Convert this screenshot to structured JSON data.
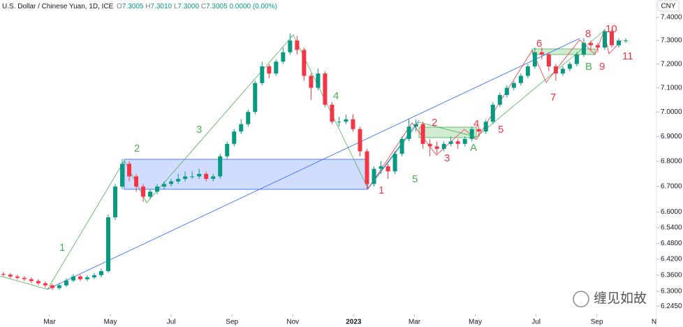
{
  "header": {
    "symbol": "U.S. Dollar / Chinese Yuan, 1D, ICE",
    "ohlc": [
      {
        "label": "O",
        "value": "7.3005"
      },
      {
        "label": "H",
        "value": "7.3010"
      },
      {
        "label": "L",
        "value": "7.3000"
      },
      {
        "label": "C",
        "value": "7.3005"
      }
    ],
    "change": "0.0000 (0.00%)",
    "currency": "CNY"
  },
  "annotations": {
    "green": [
      "1",
      "2",
      "3",
      "4",
      "5",
      "A",
      "B"
    ],
    "red": [
      "1",
      "2",
      "3",
      "4",
      "5",
      "6",
      "7",
      "8",
      "9",
      "10",
      "11"
    ]
  },
  "watermark": "缠见如故",
  "chart_data": {
    "type": "candlestick",
    "log": true,
    "grid": false,
    "up_color": "#089981",
    "down_color": "#f23645",
    "xlim": [
      0.37,
      21.96
    ],
    "ylim": [
      6.215,
      7.476
    ],
    "xticks": [
      {
        "value": 2,
        "label": "Mar"
      },
      {
        "value": 4,
        "label": "May"
      },
      {
        "value": 6,
        "label": "Jul"
      },
      {
        "value": 8,
        "label": "Sep"
      },
      {
        "value": 10,
        "label": "Nov"
      },
      {
        "value": 12,
        "label": "2023"
      },
      {
        "value": 14,
        "label": "Mar"
      },
      {
        "value": 16,
        "label": "May"
      },
      {
        "value": 18,
        "label": "Jul"
      },
      {
        "value": 20,
        "label": "Sep"
      },
      {
        "value": 22,
        "label": "Nov"
      }
    ],
    "yticks": [
      {
        "value": 7.4,
        "label": "7.4000"
      },
      {
        "value": 7.3,
        "label": "7.3000"
      },
      {
        "value": 7.2,
        "label": "7.2000"
      },
      {
        "value": 7.1,
        "label": "7.1000"
      },
      {
        "value": 7.0,
        "label": "7.0000"
      },
      {
        "value": 6.9,
        "label": "6.9000"
      },
      {
        "value": 6.8,
        "label": "6.8000"
      },
      {
        "value": 6.7,
        "label": "6.7000"
      },
      {
        "value": 6.6,
        "label": "6.6000"
      },
      {
        "value": 6.54,
        "label": "6.5400"
      },
      {
        "value": 6.48,
        "label": "6.4800"
      },
      {
        "value": 6.42,
        "label": "6.4200"
      },
      {
        "value": 6.36,
        "label": "6.3600"
      },
      {
        "value": 6.3,
        "label": "6.3000"
      },
      {
        "value": 6.245,
        "label": "6.2450"
      }
    ],
    "x": [
      0.48,
      0.71,
      0.94,
      1.17,
      1.4,
      1.63,
      1.86,
      2.09,
      2.32,
      2.55,
      2.78,
      3.01,
      3.24,
      3.47,
      3.7,
      3.93,
      4.16,
      4.39,
      4.62,
      4.85,
      5.08,
      5.31,
      5.54,
      5.77,
      6.0,
      6.23,
      6.46,
      6.69,
      6.92,
      7.15,
      7.38,
      7.61,
      7.84,
      8.07,
      8.3,
      8.53,
      8.76,
      8.99,
      9.22,
      9.45,
      9.68,
      9.91,
      10.14,
      10.37,
      10.6,
      10.83,
      11.06,
      11.29,
      11.52,
      11.75,
      11.98,
      12.21,
      12.44,
      12.67,
      12.9,
      13.13,
      13.36,
      13.59,
      13.82,
      14.05,
      14.28,
      14.51,
      14.74,
      14.97,
      15.2,
      15.43,
      15.66,
      15.89,
      16.12,
      16.35,
      16.58,
      16.81,
      17.04,
      17.27,
      17.5,
      17.73,
      17.96,
      18.19,
      18.42,
      18.65,
      18.88,
      19.11,
      19.34,
      19.57,
      19.8,
      20.03,
      20.26,
      20.49,
      20.72,
      20.95
    ],
    "open": [
      6.365,
      6.362,
      6.355,
      6.35,
      6.345,
      6.338,
      6.33,
      6.322,
      6.312,
      6.322,
      6.34,
      6.355,
      6.345,
      6.352,
      6.36,
      6.375,
      6.58,
      6.7,
      6.79,
      6.74,
      6.7,
      6.66,
      6.68,
      6.7,
      6.71,
      6.72,
      6.73,
      6.74,
      6.74,
      6.75,
      6.73,
      6.74,
      6.82,
      6.87,
      6.92,
      6.95,
      7.0,
      7.12,
      7.19,
      7.16,
      7.21,
      7.25,
      7.3,
      7.26,
      7.15,
      7.1,
      7.16,
      7.03,
      6.96,
      6.96,
      6.97,
      6.93,
      6.84,
      6.71,
      6.77,
      6.78,
      6.76,
      6.83,
      6.89,
      6.94,
      6.95,
      6.87,
      6.86,
      6.85,
      6.87,
      6.88,
      6.87,
      6.89,
      6.93,
      6.92,
      6.96,
      7.03,
      7.07,
      7.1,
      7.12,
      7.15,
      7.19,
      7.25,
      7.24,
      7.19,
      7.16,
      7.18,
      7.2,
      7.24,
      7.29,
      7.28,
      7.27,
      7.34,
      7.28,
      7.3
    ],
    "high": [
      6.372,
      6.368,
      6.362,
      6.357,
      6.352,
      6.345,
      6.337,
      6.328,
      6.33,
      6.348,
      6.364,
      6.362,
      6.36,
      6.368,
      6.384,
      6.59,
      6.71,
      6.81,
      6.8,
      6.75,
      6.71,
      6.69,
      6.71,
      6.72,
      6.73,
      6.75,
      6.76,
      6.76,
      6.77,
      6.76,
      6.75,
      6.83,
      6.88,
      6.93,
      6.97,
      7.01,
      7.13,
      7.21,
      7.2,
      7.22,
      7.27,
      7.33,
      7.32,
      7.27,
      7.16,
      7.18,
      7.17,
      7.04,
      6.98,
      6.99,
      6.99,
      6.94,
      6.85,
      6.78,
      6.8,
      6.79,
      6.84,
      6.9,
      6.97,
      6.97,
      6.96,
      6.89,
      6.88,
      6.88,
      6.9,
      6.89,
      6.9,
      6.94,
      6.94,
      6.97,
      7.04,
      7.08,
      7.11,
      7.13,
      7.16,
      7.2,
      7.27,
      7.27,
      7.25,
      7.2,
      7.19,
      7.21,
      7.25,
      7.31,
      7.3,
      7.29,
      7.35,
      7.35,
      7.31,
      7.31
    ],
    "low": [
      6.354,
      6.348,
      6.343,
      6.338,
      6.33,
      6.322,
      6.314,
      6.305,
      6.306,
      6.316,
      6.334,
      6.338,
      6.338,
      6.345,
      6.352,
      6.37,
      6.57,
      6.69,
      6.72,
      6.68,
      6.64,
      6.65,
      6.67,
      6.69,
      6.7,
      6.71,
      6.72,
      6.73,
      6.73,
      6.72,
      6.72,
      6.73,
      6.81,
      6.86,
      6.91,
      6.94,
      6.99,
      7.11,
      7.14,
      7.15,
      7.2,
      7.24,
      7.24,
      7.13,
      7.05,
      7.09,
      7.02,
      6.95,
      6.94,
      6.95,
      6.92,
      6.82,
      6.69,
      6.7,
      6.75,
      6.73,
      6.75,
      6.82,
      6.88,
      6.92,
      6.85,
      6.82,
      6.83,
      6.84,
      6.86,
      6.85,
      6.86,
      6.88,
      6.9,
      6.91,
      6.95,
      7.02,
      7.06,
      7.09,
      7.11,
      7.14,
      7.18,
      7.22,
      7.17,
      7.13,
      7.15,
      7.17,
      7.19,
      7.23,
      7.26,
      7.25,
      7.26,
      7.27,
      7.27,
      7.29
    ],
    "close": [
      6.362,
      6.355,
      6.35,
      6.345,
      6.338,
      6.33,
      6.322,
      6.312,
      6.322,
      6.34,
      6.355,
      6.345,
      6.352,
      6.36,
      6.375,
      6.58,
      6.7,
      6.79,
      6.74,
      6.7,
      6.66,
      6.68,
      6.7,
      6.71,
      6.72,
      6.73,
      6.74,
      6.74,
      6.75,
      6.73,
      6.74,
      6.82,
      6.87,
      6.92,
      6.95,
      7.0,
      7.12,
      7.19,
      7.16,
      7.21,
      7.25,
      7.3,
      7.26,
      7.15,
      7.1,
      7.16,
      7.03,
      6.96,
      6.96,
      6.97,
      6.93,
      6.84,
      6.71,
      6.77,
      6.78,
      6.76,
      6.83,
      6.89,
      6.94,
      6.95,
      6.87,
      6.86,
      6.85,
      6.87,
      6.88,
      6.87,
      6.89,
      6.93,
      6.92,
      6.96,
      7.03,
      7.07,
      7.1,
      7.12,
      7.15,
      7.19,
      7.25,
      7.24,
      7.19,
      7.16,
      7.18,
      7.2,
      7.24,
      7.29,
      7.28,
      7.27,
      7.34,
      7.28,
      7.3,
      7.3
    ]
  }
}
